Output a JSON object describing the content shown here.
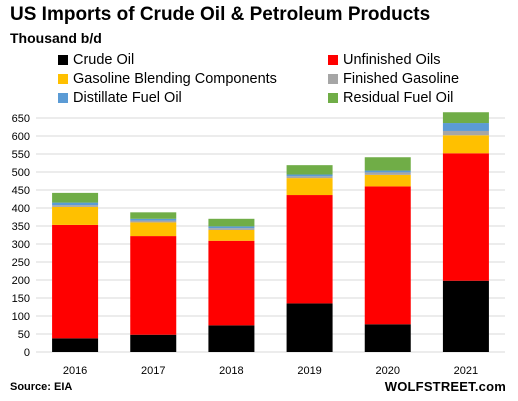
{
  "chart_data": {
    "type": "bar",
    "stacked": true,
    "title": "US Imports of Crude Oil & Petroleum Products",
    "subtitle": "Thousand b/d",
    "categories": [
      "2016",
      "2017",
      "2018",
      "2019",
      "2020",
      "2021"
    ],
    "series": [
      {
        "name": "Crude Oil",
        "color": "#000000",
        "values": [
          38,
          48,
          74,
          135,
          77,
          198
        ]
      },
      {
        "name": "Unfinished Oils",
        "color": "#ff0000",
        "values": [
          315,
          274,
          235,
          301,
          383,
          354
        ]
      },
      {
        "name": "Gasoline Blending Components",
        "color": "#ffc000",
        "values": [
          50,
          38,
          30,
          47,
          32,
          50
        ]
      },
      {
        "name": "Finished Gasoline",
        "color": "#a6a6a6",
        "values": [
          5,
          5,
          5,
          5,
          7,
          12
        ]
      },
      {
        "name": "Distillate Fuel Oil",
        "color": "#5b9bd5",
        "values": [
          7,
          5,
          5,
          5,
          5,
          22
        ]
      },
      {
        "name": "Residual Fuel Oil",
        "color": "#70ad47",
        "values": [
          27,
          18,
          21,
          26,
          37,
          30
        ]
      }
    ],
    "ylim": [
      0,
      650
    ],
    "yticks": [
      0,
      50,
      100,
      150,
      200,
      250,
      300,
      350,
      400,
      450,
      500,
      550,
      600,
      650
    ],
    "grid": true,
    "legend_position": "top"
  },
  "footer": {
    "source": "Source: EIA",
    "brand": "WOLFSTREET.com"
  }
}
